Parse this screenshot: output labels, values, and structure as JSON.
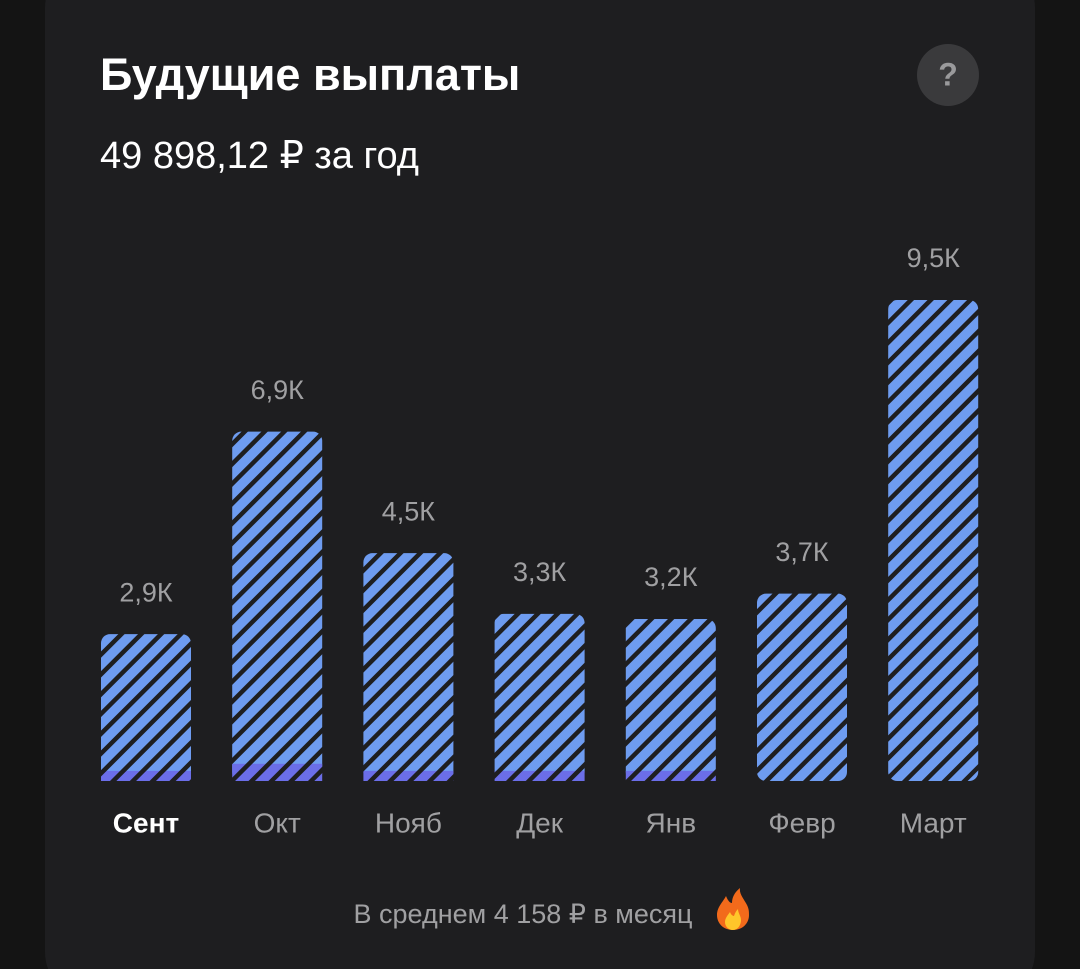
{
  "chart_data": {
    "type": "bar",
    "title": "Будущие выплаты",
    "subtitle": "49 898,12 ₽ за год",
    "help_button": "?",
    "categories": [
      "Сент",
      "Окт",
      "Нояб",
      "Дек",
      "Янв",
      "Февр",
      "Март"
    ],
    "values": [
      2900,
      6900,
      4500,
      3300,
      3200,
      3700,
      9500
    ],
    "value_labels": [
      "2,9К",
      "6,9К",
      "4,5К",
      "3,3К",
      "3,2К",
      "3,7К",
      "9,5К"
    ],
    "color": "#6e9cf0",
    "highlight_values": [
      200,
      340,
      200,
      200,
      200,
      0,
      0
    ],
    "highlight_color": "#6b6ee8",
    "selected": 0,
    "footer": "В среднем 4 158 ₽ в месяц"
  }
}
